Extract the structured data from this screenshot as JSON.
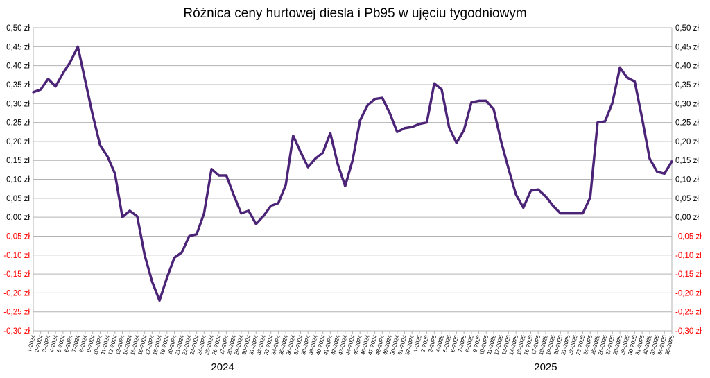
{
  "chart_data": {
    "type": "line",
    "title": "Różnica ceny hurtowej diesla i Pb95 w ujęciu tygodniowym",
    "xlabel": "",
    "ylabel": "",
    "ylim": [
      -0.3,
      0.5
    ],
    "y_ticks": [
      "0,50 zł",
      "0,45 zł",
      "0,40 zł",
      "0,35 zł",
      "0,30 zł",
      "0,25 zł",
      "0,20 zł",
      "0,15 zł",
      "0,10 zł",
      "0,05 zł",
      "0,00 zł",
      "-0,05 zł",
      "-0,10 zł",
      "-0,15 zł",
      "-0,20 zł",
      "-0,25 zł",
      "-0,30 zł"
    ],
    "y_tick_values": [
      0.5,
      0.45,
      0.4,
      0.35,
      0.3,
      0.25,
      0.2,
      0.15,
      0.1,
      0.05,
      0.0,
      -0.05,
      -0.1,
      -0.15,
      -0.2,
      -0.25,
      -0.3
    ],
    "negative_tick_color": "#ff0000",
    "positive_tick_color": "#000000",
    "line_color": "#4b2377",
    "grid": true,
    "grid_color": "#b3b3b3",
    "year_labels": [
      "2024",
      "2025"
    ],
    "categories": [
      "1-2024",
      "2-2024",
      "3-2024",
      "4-2024",
      "5-2024",
      "6-2024",
      "7-2024",
      "8-2024",
      "9-2024",
      "10-2024",
      "11-2024",
      "12-2024",
      "13-2024",
      "14-2024",
      "15-2024",
      "16-2024",
      "17-2024",
      "18-2024",
      "19-2024",
      "20-2024",
      "21-2024",
      "22-2024",
      "23-2024",
      "24-2024",
      "25-2024",
      "26-2024",
      "27-2024",
      "28-2024",
      "29-2024",
      "30-2024",
      "31-2024",
      "32-2024",
      "33-2024",
      "34-2024",
      "35-2024",
      "36-2024",
      "37-2024",
      "38-2024",
      "39-2024",
      "40-2024",
      "41-2024",
      "42-2024",
      "43-2024",
      "44-2024",
      "45-2024",
      "46-2024",
      "47-2024",
      "48-2024",
      "49-2024",
      "50-2024",
      "51-2024",
      "52-2024",
      "1-2025",
      "2-2025",
      "3-2025",
      "4-2025",
      "5-2025",
      "6-2025",
      "7-2025",
      "8-2025",
      "9-2025",
      "10-2025",
      "11-2025",
      "12-2025",
      "13-2025",
      "14-2025",
      "15-2025",
      "16-2025",
      "17-2025",
      "18-2025",
      "19-2025",
      "20-2025",
      "21-2025",
      "22-2025",
      "23-2025",
      "24-2025",
      "25-2025",
      "26-2025",
      "27-2025",
      "28-2025",
      "29-2025",
      "30-2025",
      "31-2025",
      "32-2025",
      "33-2025",
      "34-2025",
      "35-2025"
    ],
    "values": [
      0.33,
      0.337,
      0.365,
      0.345,
      0.38,
      0.41,
      0.45,
      0.36,
      0.27,
      0.19,
      0.16,
      0.115,
      0.0,
      0.017,
      0.002,
      -0.1,
      -0.17,
      -0.22,
      -0.16,
      -0.107,
      -0.093,
      -0.05,
      -0.045,
      0.01,
      0.127,
      0.11,
      0.11,
      0.058,
      0.01,
      0.017,
      -0.018,
      0.003,
      0.03,
      0.037,
      0.085,
      0.215,
      0.172,
      0.132,
      0.155,
      0.17,
      0.222,
      0.14,
      0.082,
      0.15,
      0.255,
      0.295,
      0.312,
      0.315,
      0.275,
      0.225,
      0.235,
      0.238,
      0.246,
      0.25,
      0.353,
      0.337,
      0.237,
      0.196,
      0.23,
      0.303,
      0.307,
      0.307,
      0.285,
      0.2,
      0.128,
      0.06,
      0.025,
      0.07,
      0.073,
      0.055,
      0.03,
      0.01,
      0.01,
      0.01,
      0.01,
      0.052,
      0.25,
      0.253,
      0.302,
      0.395,
      0.368,
      0.358,
      0.26,
      0.155,
      0.12,
      0.115,
      0.147
    ]
  }
}
